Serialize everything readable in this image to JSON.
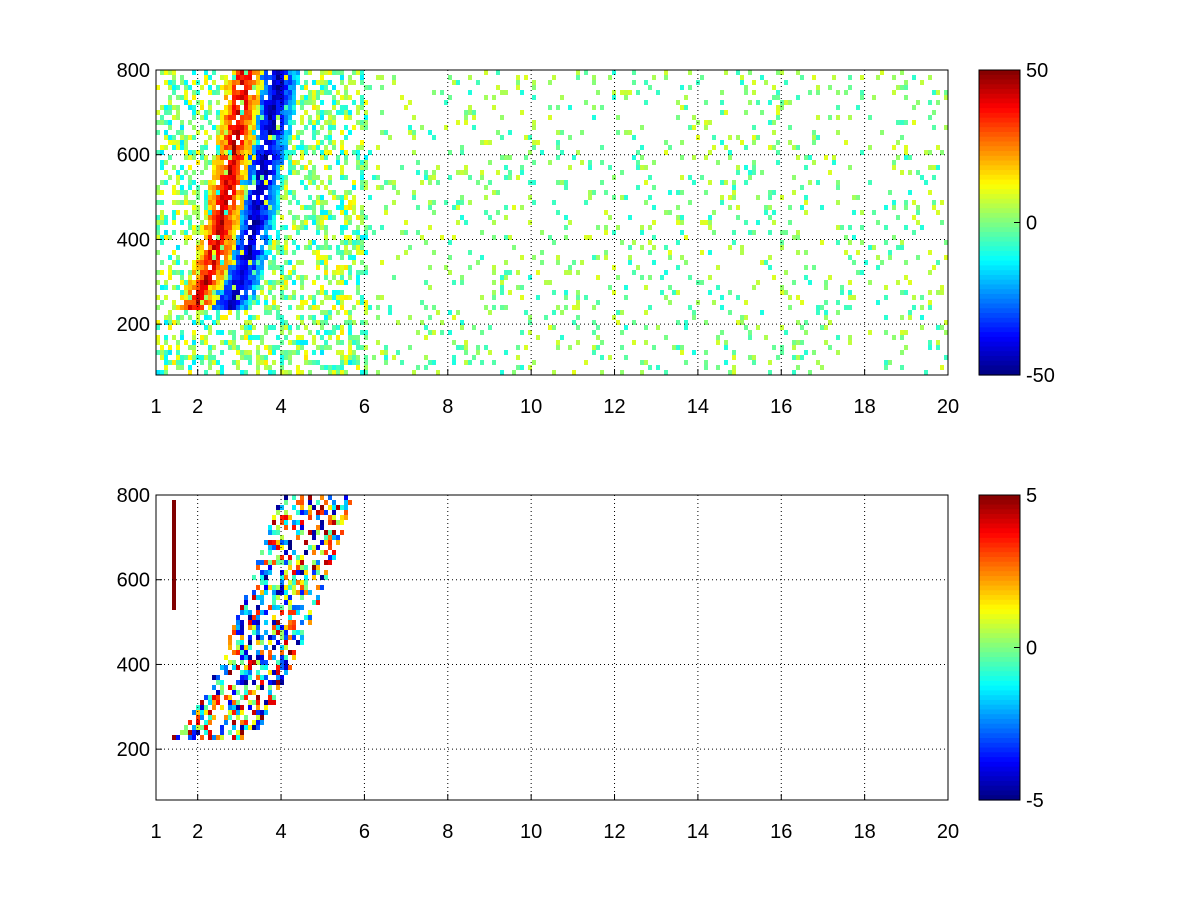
{
  "chart_data": [
    {
      "type": "heatmap",
      "title": "",
      "xlabel": "",
      "ylabel": "",
      "xlim": [
        1,
        20
      ],
      "ylim": [
        80,
        800
      ],
      "xticks": [
        1,
        2,
        4,
        6,
        8,
        10,
        12,
        14,
        16,
        18,
        20
      ],
      "xtick_labels": [
        "1",
        "2",
        "4",
        "6",
        "8",
        "10",
        "12",
        "14",
        "16",
        "18",
        "20"
      ],
      "yticks": [
        200,
        400,
        600,
        800
      ],
      "ytick_labels": [
        "200",
        "400",
        "600",
        "800"
      ],
      "grid": true,
      "colormap": "jet",
      "colorbar": {
        "min": -50,
        "max": 50,
        "ticks": [
          50,
          0,
          -50
        ],
        "tick_labels": [
          "50",
          "0",
          "-50"
        ]
      },
      "features": [
        {
          "description": "positive ridge",
          "x_range": [
            1.8,
            3.4
          ],
          "y_range": [
            250,
            800
          ],
          "value": 40
        },
        {
          "description": "negative ridge",
          "x_range": [
            2.6,
            4.2
          ],
          "y_range": [
            280,
            800
          ],
          "value": -45
        },
        {
          "description": "sparse low-magnitude scatter",
          "x_range": [
            4,
            20
          ],
          "y_range": [
            80,
            800
          ],
          "value_range": [
            -15,
            15
          ]
        }
      ]
    },
    {
      "type": "heatmap",
      "title": "",
      "xlabel": "",
      "ylabel": "",
      "xlim": [
        1,
        20
      ],
      "ylim": [
        80,
        800
      ],
      "xticks": [
        1,
        2,
        4,
        6,
        8,
        10,
        12,
        14,
        16,
        18,
        20
      ],
      "xtick_labels": [
        "1",
        "2",
        "4",
        "6",
        "8",
        "10",
        "12",
        "14",
        "16",
        "18",
        "20"
      ],
      "yticks": [
        200,
        400,
        600,
        800
      ],
      "ytick_labels": [
        "200",
        "400",
        "600",
        "800"
      ],
      "grid": true,
      "colormap": "jet",
      "colorbar": {
        "min": -5,
        "max": 5,
        "ticks": [
          5,
          0,
          -5
        ],
        "tick_labels": [
          "5",
          "0",
          "-5"
        ]
      },
      "features": [
        {
          "description": "mixed band",
          "x_range": [
            1.8,
            5.8
          ],
          "y_range": [
            230,
            800
          ],
          "value_range": [
            -5,
            5
          ]
        },
        {
          "description": "thin vertical streak",
          "x": 1.4,
          "y_range": [
            540,
            790
          ],
          "value": 5
        }
      ]
    }
  ]
}
